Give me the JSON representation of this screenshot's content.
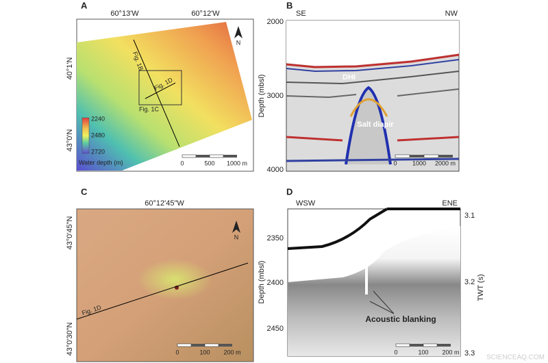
{
  "panel_a": {
    "label": "A",
    "longitudes": [
      "60°13'W",
      "60°12'W"
    ],
    "latitudes": [
      "40°1'N",
      "43°0'N"
    ],
    "profiles": [
      "Fig. 1B",
      "Fig. 1D",
      "Fig. 1C"
    ],
    "north": "N",
    "colorbar": {
      "ticks": [
        2240,
        2480,
        2720
      ],
      "title": "Water depth (m)"
    },
    "scale": [
      "0",
      "500",
      "1000 m"
    ]
  },
  "panel_b": {
    "label": "B",
    "left": "SE",
    "right": "NW",
    "y_axis": "Depth (mbsl)",
    "yticks": [
      2000,
      3000,
      4000
    ],
    "annotations": [
      "DHI",
      "Salt diapir"
    ],
    "scale": [
      "0",
      "1000",
      "2000 m"
    ]
  },
  "panel_c": {
    "label": "C",
    "longitude": "60°12'45\"W",
    "latitudes": [
      "43°0'45\"N",
      "43°0'30\"N"
    ],
    "profile": "Fig. 1D",
    "north": "N",
    "scale": [
      "0",
      "100",
      "200 m"
    ]
  },
  "panel_d": {
    "label": "D",
    "left": "WSW",
    "right": "ENE",
    "y_axis": "Depth (mbsl)",
    "yticks": [
      2350,
      2400,
      2450
    ],
    "y2_axis": "TWT (s)",
    "y2ticks": [
      3.1,
      3.2,
      3.3
    ],
    "annotation": "Acoustic blanking",
    "scale": [
      "0",
      "100",
      "200 m"
    ]
  },
  "watermark": "SCIENCEAQ.COM"
}
